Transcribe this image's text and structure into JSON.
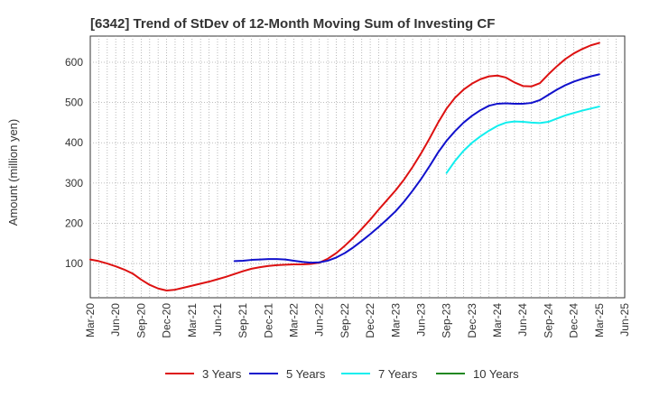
{
  "chart_data": {
    "type": "line",
    "title": "[6342]  Trend of StDev of 12-Month Moving Sum of Investing CF",
    "xlabel": "",
    "ylabel": "Amount (million yen)",
    "ylim": [
      15,
      665
    ],
    "yticks": [
      100,
      200,
      300,
      400,
      500,
      600
    ],
    "ytick_labels": [
      "100",
      "200",
      "300",
      "400",
      "500",
      "600"
    ],
    "xlim": [
      "2020-03",
      "2025-06"
    ],
    "xtick_labels": [
      "Mar-20",
      "Jun-20",
      "Sep-20",
      "Dec-20",
      "Mar-21",
      "Jun-21",
      "Sep-21",
      "Dec-21",
      "Mar-22",
      "Jun-22",
      "Sep-22",
      "Dec-22",
      "Mar-23",
      "Jun-23",
      "Sep-23",
      "Dec-23",
      "Mar-24",
      "Jun-24",
      "Sep-24",
      "Dec-24",
      "Mar-25",
      "Jun-25"
    ],
    "grid": true,
    "legend_position": "bottom",
    "series": [
      {
        "name": "3 Years",
        "color": "#dd1111",
        "points": [
          [
            "2020-03",
            110
          ],
          [
            "2020-04",
            106
          ],
          [
            "2020-05",
            100
          ],
          [
            "2020-06",
            93
          ],
          [
            "2020-07",
            85
          ],
          [
            "2020-08",
            75
          ],
          [
            "2020-09",
            60
          ],
          [
            "2020-10",
            47
          ],
          [
            "2020-11",
            38
          ],
          [
            "2020-12",
            33
          ],
          [
            "2021-01",
            35
          ],
          [
            "2021-02",
            40
          ],
          [
            "2021-03",
            45
          ],
          [
            "2021-04",
            50
          ],
          [
            "2021-05",
            55
          ],
          [
            "2021-06",
            61
          ],
          [
            "2021-07",
            67
          ],
          [
            "2021-08",
            74
          ],
          [
            "2021-09",
            81
          ],
          [
            "2021-10",
            87
          ],
          [
            "2021-11",
            91
          ],
          [
            "2021-12",
            94
          ],
          [
            "2022-01",
            96
          ],
          [
            "2022-02",
            97
          ],
          [
            "2022-03",
            98
          ],
          [
            "2022-04",
            98
          ],
          [
            "2022-05",
            99
          ],
          [
            "2022-06",
            102
          ],
          [
            "2022-07",
            112
          ],
          [
            "2022-08",
            126
          ],
          [
            "2022-09",
            144
          ],
          [
            "2022-10",
            164
          ],
          [
            "2022-11",
            186
          ],
          [
            "2022-12",
            209
          ],
          [
            "2023-01",
            234
          ],
          [
            "2023-02",
            258
          ],
          [
            "2023-03",
            282
          ],
          [
            "2023-04",
            309
          ],
          [
            "2023-05",
            340
          ],
          [
            "2023-06",
            374
          ],
          [
            "2023-07",
            411
          ],
          [
            "2023-08",
            450
          ],
          [
            "2023-09",
            485
          ],
          [
            "2023-10",
            512
          ],
          [
            "2023-11",
            532
          ],
          [
            "2023-12",
            547
          ],
          [
            "2024-01",
            558
          ],
          [
            "2024-02",
            565
          ],
          [
            "2024-03",
            567
          ],
          [
            "2024-04",
            562
          ],
          [
            "2024-05",
            550
          ],
          [
            "2024-06",
            541
          ],
          [
            "2024-07",
            540
          ],
          [
            "2024-08",
            548
          ],
          [
            "2024-09",
            570
          ],
          [
            "2024-10",
            590
          ],
          [
            "2024-11",
            608
          ],
          [
            "2024-12",
            622
          ],
          [
            "2025-01",
            633
          ],
          [
            "2025-02",
            642
          ],
          [
            "2025-03",
            648
          ]
        ]
      },
      {
        "name": "5 Years",
        "color": "#1111cc",
        "points": [
          [
            "2021-08",
            106
          ],
          [
            "2021-09",
            107
          ],
          [
            "2021-10",
            109
          ],
          [
            "2021-11",
            110
          ],
          [
            "2021-12",
            111
          ],
          [
            "2022-01",
            111
          ],
          [
            "2022-02",
            110
          ],
          [
            "2022-03",
            107
          ],
          [
            "2022-04",
            104
          ],
          [
            "2022-05",
            102
          ],
          [
            "2022-06",
            103
          ],
          [
            "2022-07",
            107
          ],
          [
            "2022-08",
            115
          ],
          [
            "2022-09",
            126
          ],
          [
            "2022-10",
            140
          ],
          [
            "2022-11",
            156
          ],
          [
            "2022-12",
            173
          ],
          [
            "2023-01",
            191
          ],
          [
            "2023-02",
            210
          ],
          [
            "2023-03",
            230
          ],
          [
            "2023-04",
            254
          ],
          [
            "2023-05",
            281
          ],
          [
            "2023-06",
            310
          ],
          [
            "2023-07",
            342
          ],
          [
            "2023-08",
            376
          ],
          [
            "2023-09",
            405
          ],
          [
            "2023-10",
            429
          ],
          [
            "2023-11",
            450
          ],
          [
            "2023-12",
            467
          ],
          [
            "2024-01",
            481
          ],
          [
            "2024-02",
            492
          ],
          [
            "2024-03",
            497
          ],
          [
            "2024-04",
            498
          ],
          [
            "2024-05",
            497
          ],
          [
            "2024-06",
            497
          ],
          [
            "2024-07",
            499
          ],
          [
            "2024-08",
            506
          ],
          [
            "2024-09",
            519
          ],
          [
            "2024-10",
            532
          ],
          [
            "2024-11",
            543
          ],
          [
            "2024-12",
            552
          ],
          [
            "2025-01",
            559
          ],
          [
            "2025-02",
            565
          ],
          [
            "2025-03",
            570
          ]
        ]
      },
      {
        "name": "7 Years",
        "color": "#11eeee",
        "points": [
          [
            "2023-09",
            325
          ],
          [
            "2023-10",
            355
          ],
          [
            "2023-11",
            380
          ],
          [
            "2023-12",
            400
          ],
          [
            "2024-01",
            416
          ],
          [
            "2024-02",
            430
          ],
          [
            "2024-03",
            442
          ],
          [
            "2024-04",
            450
          ],
          [
            "2024-05",
            453
          ],
          [
            "2024-06",
            452
          ],
          [
            "2024-07",
            450
          ],
          [
            "2024-08",
            449
          ],
          [
            "2024-09",
            452
          ],
          [
            "2024-10",
            460
          ],
          [
            "2024-11",
            468
          ],
          [
            "2024-12",
            474
          ],
          [
            "2025-01",
            480
          ],
          [
            "2025-02",
            485
          ],
          [
            "2025-03",
            490
          ]
        ]
      },
      {
        "name": "10 Years",
        "color": "#228822",
        "points": []
      }
    ]
  }
}
